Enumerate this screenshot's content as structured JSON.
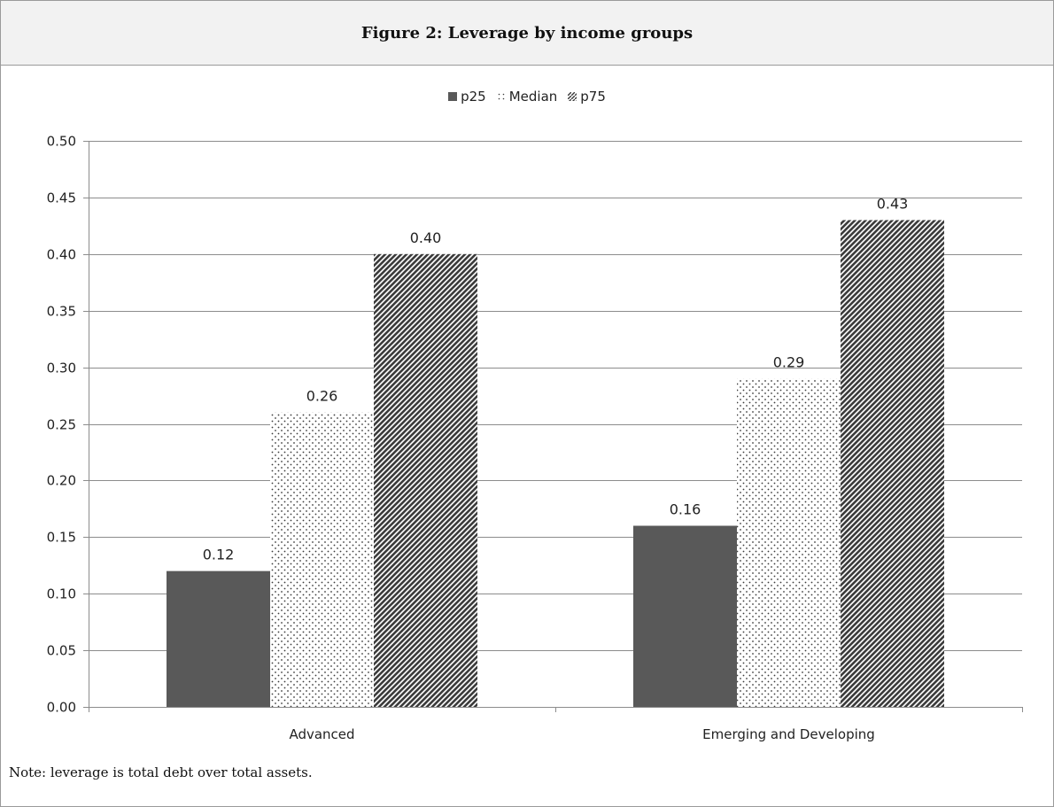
{
  "figure": {
    "title": "Figure 2: Leverage by income groups",
    "note": "Note: leverage is total debt over total assets."
  },
  "chart_data": {
    "type": "bar",
    "title": "Figure 2: Leverage by income groups",
    "categories": [
      "Advanced",
      "Emerging and Developing"
    ],
    "series": [
      {
        "name": "p25",
        "values": [
          0.12,
          0.16
        ],
        "labels": [
          "0.12",
          "0.16"
        ],
        "pattern": "solid"
      },
      {
        "name": "Median",
        "values": [
          0.26,
          0.29
        ],
        "labels": [
          "0.26",
          "0.29"
        ],
        "pattern": "dots"
      },
      {
        "name": "p75",
        "values": [
          0.4,
          0.43
        ],
        "labels": [
          "0.40",
          "0.43"
        ],
        "pattern": "diagonal"
      }
    ],
    "ylim": [
      0,
      0.5
    ],
    "yticks": [
      "0.00",
      "0.05",
      "0.10",
      "0.15",
      "0.20",
      "0.25",
      "0.30",
      "0.35",
      "0.40",
      "0.45",
      "0.50"
    ],
    "grid": true,
    "legend_position": "top-center",
    "colors": {
      "bar_dark": "#595959",
      "pattern": "#3c3c3c",
      "grid": "#8c8c8c",
      "axis": "#8c8c8c"
    }
  }
}
